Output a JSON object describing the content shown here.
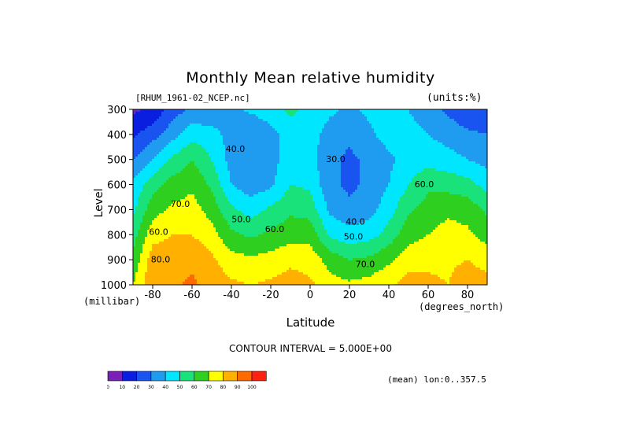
{
  "chart_data": {
    "type": "heatmap",
    "title": "Monthly Mean relative humidity",
    "dataset_label": "[RHUM_1961-02_NCEP.nc]",
    "units_label": "(units:%)",
    "xlabel": "Latitude",
    "xunit": "(degrees_north)",
    "ylabel": "Level",
    "yunit": "(millibar)",
    "xlim": [
      -90,
      90
    ],
    "ylim": [
      1000,
      300
    ],
    "y_scale": "pressure (top=300, bottom=1000)",
    "x_ticks": [
      "-80",
      "-60",
      "-40",
      "-20",
      "0",
      "20",
      "40",
      "60",
      "80"
    ],
    "y_ticks": [
      "300",
      "400",
      "500",
      "600",
      "700",
      "800",
      "900",
      "1000"
    ],
    "contour_interval_text": "CONTOUR INTERVAL = 5.000E+00",
    "mean_lon_text": "(mean) lon:0..357.5",
    "contour_labels": [
      {
        "text": "40.0",
        "lat": -38,
        "lev": 470
      },
      {
        "text": "30.0",
        "lat": 13,
        "lev": 510
      },
      {
        "text": "70.0",
        "lat": -66,
        "lev": 690
      },
      {
        "text": "50.0",
        "lat": -35,
        "lev": 750
      },
      {
        "text": "60.0",
        "lat": -18,
        "lev": 790
      },
      {
        "text": "40.0",
        "lat": 23,
        "lev": 760
      },
      {
        "text": "50.0",
        "lat": 22,
        "lev": 820
      },
      {
        "text": "60.0",
        "lat": 58,
        "lev": 610
      },
      {
        "text": "60.0",
        "lat": -77,
        "lev": 800
      },
      {
        "text": "70.0",
        "lat": 28,
        "lev": 930
      },
      {
        "text": "80.0",
        "lat": -76,
        "lev": 910
      }
    ],
    "colorbar": {
      "ticks": [
        "0",
        "10",
        "20",
        "30",
        "40",
        "50",
        "60",
        "70",
        "80",
        "90",
        "100"
      ],
      "colors": [
        "#7a1fb8",
        "#0a1ee0",
        "#1a54f0",
        "#1f9bf0",
        "#00e6ff",
        "#19e27a",
        "#2fcf1f",
        "#ffff00",
        "#ffb000",
        "#ff6a00",
        "#ff2010"
      ]
    },
    "lats": [
      -90,
      -80,
      -70,
      -60,
      -50,
      -40,
      -30,
      -20,
      -10,
      0,
      10,
      20,
      30,
      40,
      50,
      60,
      70,
      80,
      90
    ],
    "levels": [
      300,
      400,
      500,
      600,
      700,
      800,
      900,
      1000
    ],
    "values": [
      [
        8,
        12,
        25,
        32,
        32,
        38,
        42,
        46,
        52,
        47,
        42,
        38,
        42,
        48,
        40,
        34,
        28,
        22,
        20
      ],
      [
        18,
        26,
        36,
        46,
        44,
        36,
        30,
        36,
        46,
        44,
        36,
        32,
        38,
        44,
        44,
        40,
        36,
        32,
        30
      ],
      [
        30,
        40,
        52,
        60,
        50,
        36,
        30,
        34,
        48,
        44,
        32,
        28,
        32,
        38,
        44,
        46,
        44,
        40,
        36
      ],
      [
        42,
        56,
        64,
        68,
        58,
        40,
        34,
        38,
        50,
        48,
        32,
        28,
        32,
        40,
        50,
        58,
        56,
        54,
        46
      ],
      [
        48,
        66,
        72,
        74,
        66,
        52,
        46,
        52,
        58,
        56,
        38,
        32,
        36,
        46,
        58,
        64,
        68,
        66,
        58
      ],
      [
        56,
        76,
        80,
        80,
        74,
        62,
        58,
        62,
        66,
        66,
        48,
        44,
        46,
        54,
        66,
        70,
        74,
        72,
        66
      ],
      [
        62,
        86,
        86,
        88,
        82,
        74,
        72,
        74,
        78,
        76,
        66,
        60,
        62,
        68,
        76,
        78,
        78,
        80,
        76
      ],
      [
        70,
        88,
        88,
        92,
        86,
        82,
        80,
        82,
        84,
        82,
        74,
        72,
        74,
        78,
        84,
        82,
        80,
        86,
        84
      ]
    ]
  }
}
